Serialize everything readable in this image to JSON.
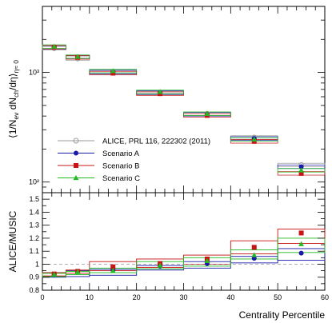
{
  "chart_data": [
    {
      "type": "scatter",
      "panel": "top",
      "scale": "log",
      "ylabel": "⟨1/N_ev dN_ch/dη⟩_η≈0",
      "ylim": [
        80,
        4000
      ],
      "xlim": [
        0,
        60
      ],
      "bins": [
        [
          0,
          5
        ],
        [
          5,
          10
        ],
        [
          10,
          20
        ],
        [
          20,
          30
        ],
        [
          30,
          40
        ],
        [
          40,
          50
        ],
        [
          50,
          60
        ]
      ],
      "ytick_labels": [
        "10²",
        "10³"
      ],
      "legend_position": "center-left",
      "series": [
        {
          "name": "ALICE, PRL 116, 222302 (2011)",
          "color": "#999999",
          "marker": "open-circle",
          "x": [
            2.5,
            7.5,
            15,
            25,
            35,
            45,
            55
          ],
          "values": [
            1660,
            1340,
            1000,
            650,
            420,
            255,
            143
          ]
        },
        {
          "name": "Scenario A",
          "color": "#1a1aa8",
          "marker": "circle",
          "x": [
            2.5,
            7.5,
            15,
            25,
            35,
            45,
            55
          ],
          "values": [
            1690,
            1380,
            1010,
            655,
            415,
            250,
            138
          ]
        },
        {
          "name": "Scenario B",
          "color": "#c81414",
          "marker": "square",
          "x": [
            2.5,
            7.5,
            15,
            25,
            35,
            45,
            55
          ],
          "values": [
            1700,
            1370,
            985,
            640,
            405,
            235,
            120
          ]
        },
        {
          "name": "Scenario C",
          "color": "#22bb22",
          "marker": "triangle",
          "x": [
            2.5,
            7.5,
            15,
            25,
            35,
            45,
            55
          ],
          "values": [
            1720,
            1390,
            1030,
            665,
            420,
            245,
            128
          ]
        }
      ]
    },
    {
      "type": "scatter",
      "panel": "bottom",
      "xlabel": "Centrality Percentile",
      "ylabel": "ALICE/MUSIC",
      "ylim": [
        0.8,
        1.55
      ],
      "xlim": [
        0,
        60
      ],
      "reference_line": 1.0,
      "xtick_labels": [
        "0",
        "10",
        "20",
        "30",
        "40",
        "50",
        "60"
      ],
      "ytick_labels": [
        "0.8",
        "0.9",
        "1",
        "1.1",
        "1.2",
        "1.3",
        "1.4",
        "1.5"
      ],
      "bins": [
        [
          0,
          5
        ],
        [
          5,
          10
        ],
        [
          10,
          20
        ],
        [
          20,
          30
        ],
        [
          30,
          40
        ],
        [
          40,
          50
        ],
        [
          50,
          60
        ]
      ],
      "series": [
        {
          "name": "Scenario A",
          "color": "#1a1aa8",
          "marker": "circle",
          "x": [
            2.5,
            7.5,
            15,
            25,
            35,
            45,
            55
          ],
          "values": [
            0.92,
            0.945,
            0.955,
            0.985,
            1.005,
            1.045,
            1.085
          ],
          "band_low": [
            0.9,
            0.905,
            0.915,
            0.955,
            0.97,
            1.01,
            1.03
          ],
          "band_high": [
            0.935,
            0.95,
            0.96,
            0.99,
            1.02,
            1.06,
            1.12
          ]
        },
        {
          "name": "Scenario B",
          "color": "#c81414",
          "marker": "square",
          "x": [
            2.5,
            7.5,
            15,
            25,
            35,
            45,
            55
          ],
          "values": [
            0.925,
            0.945,
            0.98,
            1.005,
            1.04,
            1.13,
            1.24
          ],
          "band_low": [
            0.91,
            0.93,
            0.95,
            0.975,
            1.0,
            1.08,
            1.16
          ],
          "band_high": [
            0.935,
            0.955,
            1.02,
            1.04,
            1.07,
            1.18,
            1.27
          ]
        },
        {
          "name": "Scenario C",
          "color": "#22bb22",
          "marker": "triangle",
          "x": [
            2.5,
            7.5,
            15,
            25,
            35,
            45,
            55
          ],
          "values": [
            0.92,
            0.94,
            0.95,
            0.99,
            1.025,
            1.07,
            1.155
          ],
          "band_low": [
            0.905,
            0.92,
            0.935,
            0.965,
            0.985,
            1.04,
            1.09
          ],
          "band_high": [
            0.93,
            0.945,
            0.97,
            1.02,
            1.05,
            1.11,
            1.2
          ]
        }
      ]
    }
  ]
}
